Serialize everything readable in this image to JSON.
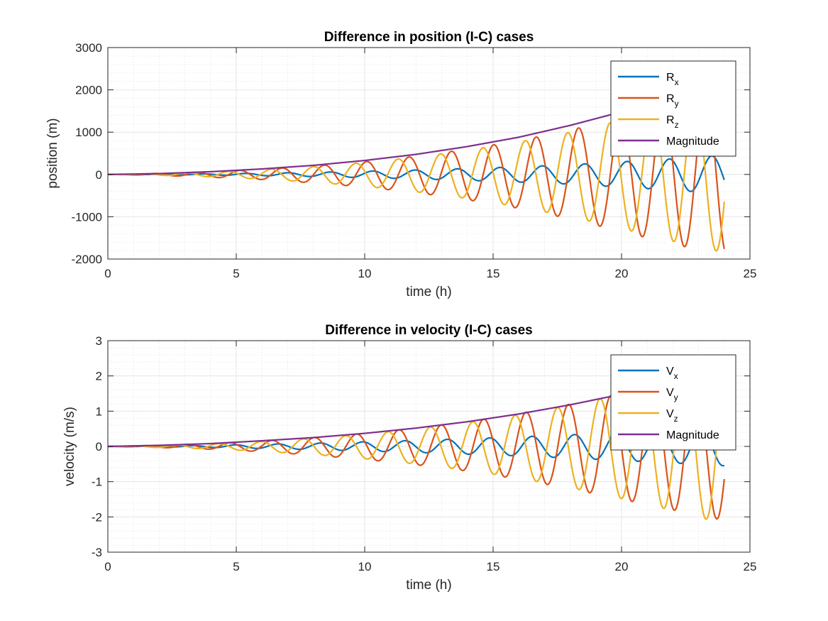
{
  "colors": {
    "blue": "#0072BD",
    "orange": "#D95319",
    "yellow": "#EDB120",
    "purple": "#7E2F8E",
    "grid": "#e6e6e6",
    "axis": "#262626"
  },
  "chart_data": [
    {
      "type": "line",
      "title": "Difference in position (I-C) cases",
      "xlabel": "time (h)",
      "ylabel": "position (m)",
      "xlim": [
        0,
        25
      ],
      "ylim": [
        -2000,
        3000
      ],
      "xticks": [
        0,
        5,
        10,
        15,
        20,
        25
      ],
      "yticks": [
        -2000,
        -1000,
        0,
        1000,
        2000,
        3000
      ],
      "xtick_labels": [
        "0",
        "5",
        "10",
        "15",
        "20",
        "25"
      ],
      "ytick_labels": [
        "-2000",
        "-1000",
        "0",
        "1000",
        "2000",
        "3000"
      ],
      "grid": true,
      "minor_grid": true,
      "legend_position": "top-right",
      "x": [
        0,
        2,
        4,
        6,
        8,
        10,
        12,
        14,
        16,
        18,
        20,
        22,
        24
      ],
      "series": [
        {
          "name": "R",
          "sub": "x",
          "color": "blue",
          "period_h": 1.65,
          "phase": 0,
          "amplitude": [
            0,
            5,
            15,
            30,
            50,
            75,
            105,
            140,
            180,
            230,
            300,
            370,
            460
          ]
        },
        {
          "name": "R",
          "sub": "y",
          "color": "orange",
          "period_h": 1.65,
          "phase": 0.9,
          "amplitude": [
            0,
            25,
            65,
            120,
            200,
            300,
            430,
            600,
            800,
            1050,
            1350,
            1650,
            1900
          ]
        },
        {
          "name": "R",
          "sub": "z",
          "color": "yellow",
          "period_h": 1.65,
          "phase": 2.5,
          "amplitude": [
            0,
            20,
            55,
            110,
            185,
            280,
            410,
            570,
            770,
            1000,
            1280,
            1580,
            1850
          ]
        },
        {
          "name": "Magnitude",
          "sub": "",
          "color": "purple",
          "values": [
            0,
            20,
            65,
            130,
            215,
            330,
            475,
            660,
            880,
            1160,
            1480,
            1820,
            2180
          ]
        }
      ]
    },
    {
      "type": "line",
      "title": "Difference in velocity (I-C) cases",
      "xlabel": "time (h)",
      "ylabel": "velocity (m/s)",
      "xlim": [
        0,
        25
      ],
      "ylim": [
        -3,
        3
      ],
      "xticks": [
        0,
        5,
        10,
        15,
        20,
        25
      ],
      "yticks": [
        -3,
        -2,
        -1,
        0,
        1,
        2,
        3
      ],
      "xtick_labels": [
        "0",
        "5",
        "10",
        "15",
        "20",
        "25"
      ],
      "ytick_labels": [
        "-3",
        "-2",
        "-1",
        "0",
        "1",
        "2",
        "3"
      ],
      "grid": true,
      "minor_grid": true,
      "legend_position": "top-right",
      "x": [
        0,
        2,
        4,
        6,
        8,
        10,
        12,
        14,
        16,
        18,
        20,
        22,
        24
      ],
      "series": [
        {
          "name": "V",
          "sub": "x",
          "color": "blue",
          "period_h": 1.65,
          "phase": 1.5,
          "amplitude": [
            0,
            0.01,
            0.03,
            0.06,
            0.09,
            0.13,
            0.17,
            0.22,
            0.27,
            0.33,
            0.4,
            0.47,
            0.55
          ]
        },
        {
          "name": "V",
          "sub": "y",
          "color": "orange",
          "period_h": 1.65,
          "phase": 2.4,
          "amplitude": [
            0,
            0.03,
            0.08,
            0.15,
            0.25,
            0.37,
            0.52,
            0.7,
            0.93,
            1.2,
            1.5,
            1.8,
            2.1
          ]
        },
        {
          "name": "V",
          "sub": "z",
          "color": "yellow",
          "period_h": 1.65,
          "phase": 4.0,
          "amplitude": [
            0,
            0.03,
            0.07,
            0.14,
            0.23,
            0.35,
            0.5,
            0.68,
            0.9,
            1.17,
            1.48,
            1.82,
            2.2
          ]
        },
        {
          "name": "Magnitude",
          "sub": "",
          "color": "purple",
          "values": [
            0,
            0.03,
            0.08,
            0.16,
            0.25,
            0.37,
            0.52,
            0.7,
            0.92,
            1.18,
            1.48,
            1.82,
            2.2
          ]
        }
      ]
    }
  ]
}
